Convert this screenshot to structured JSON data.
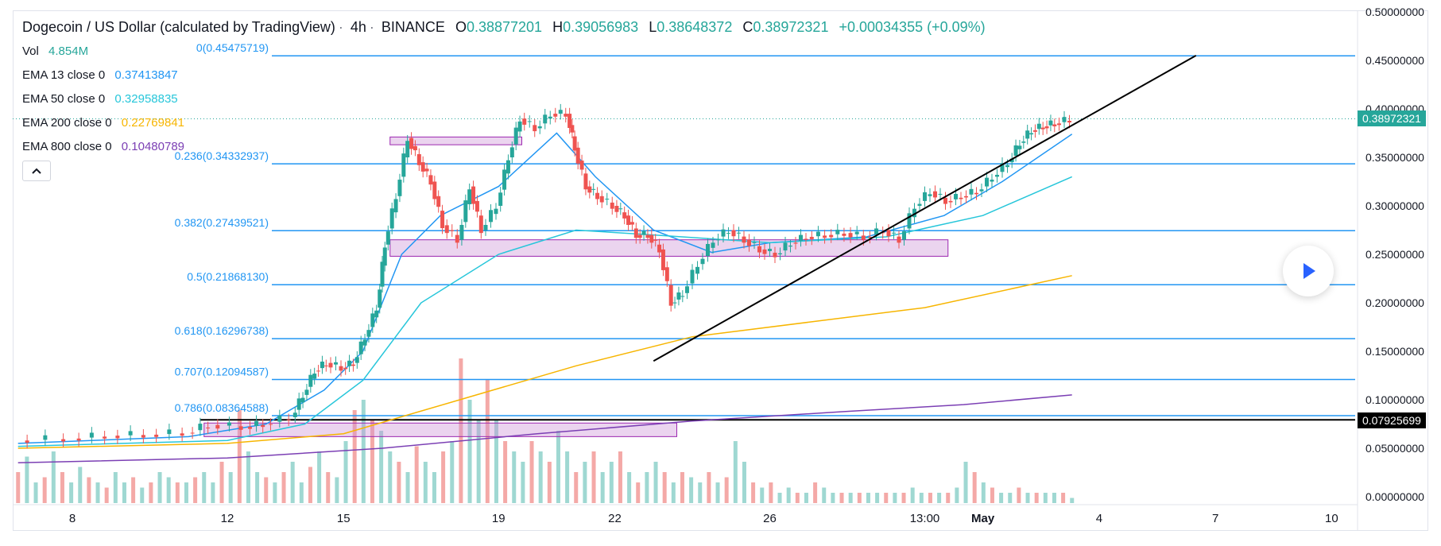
{
  "legend": {
    "symbol": "Dogecoin / US Dollar (calculated by TradingView)",
    "interval": "4h",
    "exchange": "BINANCE",
    "open_key": "O",
    "open": "0.38877201",
    "high_key": "H",
    "high": "0.39056983",
    "low_key": "L",
    "low": "0.38648372",
    "close_key": "C",
    "close": "0.38972321",
    "change": "+0.00034355 (+0.09%)",
    "vol_label": "Vol",
    "vol_value": "4.854M"
  },
  "indicators": [
    {
      "label": "EMA 13 close 0",
      "value": "0.37413847",
      "color": "#2196f3"
    },
    {
      "label": "EMA 50 close 0",
      "value": "0.32958835",
      "color": "#26c6da"
    },
    {
      "label": "EMA 200 close 0",
      "value": "0.22769841",
      "color": "#f7b500"
    },
    {
      "label": "EMA 800 close 0",
      "value": "0.10480789",
      "color": "#7b3fb4"
    }
  ],
  "price_tags": {
    "last": "0.38972321",
    "level": "0.07925699"
  },
  "colors": {
    "up": "#26a69a",
    "down": "#ef5350",
    "fib": "#2196f3",
    "zone": "#ce93d8"
  },
  "chart_data": {
    "type": "candlestick",
    "title": "Dogecoin / US Dollar (calculated by TradingView) · 4h · BINANCE",
    "ylim": [
      -0.01,
      0.51
    ],
    "y_ticks": [
      "0.50000000",
      "0.45000000",
      "0.40000000",
      "0.35000000",
      "0.30000000",
      "0.25000000",
      "0.20000000",
      "0.15000000",
      "0.10000000",
      "0.05000000",
      "0.00000000"
    ],
    "y_tick_values": [
      0.5,
      0.45,
      0.4,
      0.35,
      0.3,
      0.25,
      0.2,
      0.15,
      0.1,
      0.05,
      0.0
    ],
    "x_ticks": [
      "8",
      "12",
      "15",
      "19",
      "22",
      "26",
      "13:00",
      "May",
      "4",
      "7",
      "10"
    ],
    "x_tick_days": [
      8,
      12,
      15,
      19,
      22,
      26,
      30,
      31.5,
      34.5,
      37.5,
      40.5
    ],
    "fib_levels": [
      {
        "label": "0(0.45475719)",
        "value": 0.45475719
      },
      {
        "label": "0.236(0.34332937)",
        "value": 0.34332937
      },
      {
        "label": "0.382(0.27439521)",
        "value": 0.27439521
      },
      {
        "label": "0.5(0.21868130)",
        "value": 0.2186813
      },
      {
        "label": "0.618(0.16296738)",
        "value": 0.16296738
      },
      {
        "label": "0.707(0.12094587)",
        "value": 0.12094587
      },
      {
        "label": "0.786(0.08364588)",
        "value": 0.08364588
      }
    ],
    "horizontal_level": 0.07925699,
    "trendline": {
      "start": {
        "day": 23.0,
        "price": 0.14
      },
      "end": {
        "day": 37.0,
        "price": 0.455
      }
    },
    "zones": [
      {
        "day_start": 16.2,
        "day_end": 19.6,
        "price_low": 0.363,
        "price_high": 0.371
      },
      {
        "day_start": 16.2,
        "day_end": 30.6,
        "price_low": 0.248,
        "price_high": 0.265
      },
      {
        "day_start": 11.4,
        "day_end": 23.6,
        "price_low": 0.062,
        "price_high": 0.076
      }
    ],
    "price_series": [
      {
        "day": 6.6,
        "price": 0.058
      },
      {
        "day": 8.0,
        "price": 0.06
      },
      {
        "day": 9.0,
        "price": 0.063
      },
      {
        "day": 10.0,
        "price": 0.064
      },
      {
        "day": 11.0,
        "price": 0.066
      },
      {
        "day": 11.6,
        "price": 0.074
      },
      {
        "day": 12.5,
        "price": 0.072
      },
      {
        "day": 13.0,
        "price": 0.075
      },
      {
        "day": 13.7,
        "price": 0.082
      },
      {
        "day": 14.0,
        "price": 0.105
      },
      {
        "day": 14.3,
        "price": 0.13
      },
      {
        "day": 14.6,
        "price": 0.138
      },
      {
        "day": 15.0,
        "price": 0.133
      },
      {
        "day": 15.3,
        "price": 0.138
      },
      {
        "day": 15.6,
        "price": 0.165
      },
      {
        "day": 15.9,
        "price": 0.195
      },
      {
        "day": 16.1,
        "price": 0.26
      },
      {
        "day": 16.4,
        "price": 0.31
      },
      {
        "day": 16.7,
        "price": 0.37
      },
      {
        "day": 17.0,
        "price": 0.345
      },
      {
        "day": 17.3,
        "price": 0.325
      },
      {
        "day": 17.6,
        "price": 0.28
      },
      {
        "day": 18.0,
        "price": 0.265
      },
      {
        "day": 18.3,
        "price": 0.32
      },
      {
        "day": 18.6,
        "price": 0.275
      },
      {
        "day": 19.0,
        "price": 0.3
      },
      {
        "day": 19.3,
        "price": 0.35
      },
      {
        "day": 19.6,
        "price": 0.39
      },
      {
        "day": 20.0,
        "price": 0.38
      },
      {
        "day": 20.4,
        "price": 0.395
      },
      {
        "day": 20.8,
        "price": 0.395
      },
      {
        "day": 21.0,
        "price": 0.36
      },
      {
        "day": 21.3,
        "price": 0.32
      },
      {
        "day": 21.6,
        "price": 0.31
      },
      {
        "day": 22.0,
        "price": 0.3
      },
      {
        "day": 22.3,
        "price": 0.29
      },
      {
        "day": 22.6,
        "price": 0.27
      },
      {
        "day": 22.9,
        "price": 0.27
      },
      {
        "day": 23.2,
        "price": 0.255
      },
      {
        "day": 23.5,
        "price": 0.2
      },
      {
        "day": 23.8,
        "price": 0.21
      },
      {
        "day": 24.2,
        "price": 0.24
      },
      {
        "day": 24.6,
        "price": 0.265
      },
      {
        "day": 25.0,
        "price": 0.275
      },
      {
        "day": 25.4,
        "price": 0.265
      },
      {
        "day": 25.8,
        "price": 0.255
      },
      {
        "day": 26.2,
        "price": 0.25
      },
      {
        "day": 26.6,
        "price": 0.262
      },
      {
        "day": 27.0,
        "price": 0.268
      },
      {
        "day": 27.5,
        "price": 0.27
      },
      {
        "day": 28.0,
        "price": 0.272
      },
      {
        "day": 28.5,
        "price": 0.268
      },
      {
        "day": 29.0,
        "price": 0.275
      },
      {
        "day": 29.4,
        "price": 0.265
      },
      {
        "day": 29.8,
        "price": 0.3
      },
      {
        "day": 30.2,
        "price": 0.315
      },
      {
        "day": 30.6,
        "price": 0.305
      },
      {
        "day": 31.0,
        "price": 0.31
      },
      {
        "day": 31.4,
        "price": 0.315
      },
      {
        "day": 31.8,
        "price": 0.33
      },
      {
        "day": 32.2,
        "price": 0.345
      },
      {
        "day": 32.5,
        "price": 0.365
      },
      {
        "day": 32.8,
        "price": 0.378
      },
      {
        "day": 33.1,
        "price": 0.382
      },
      {
        "day": 33.4,
        "price": 0.385
      },
      {
        "day": 33.8,
        "price": 0.389
      }
    ],
    "ema_series": [
      {
        "name": "EMA 13",
        "points": [
          {
            "day": 6.6,
            "price": 0.055
          },
          {
            "day": 11.0,
            "price": 0.062
          },
          {
            "day": 13.0,
            "price": 0.075
          },
          {
            "day": 14.5,
            "price": 0.11
          },
          {
            "day": 15.5,
            "price": 0.15
          },
          {
            "day": 16.5,
            "price": 0.25
          },
          {
            "day": 17.5,
            "price": 0.29
          },
          {
            "day": 19.0,
            "price": 0.32
          },
          {
            "day": 20.5,
            "price": 0.375
          },
          {
            "day": 21.5,
            "price": 0.33
          },
          {
            "day": 23.0,
            "price": 0.275
          },
          {
            "day": 24.5,
            "price": 0.252
          },
          {
            "day": 26.0,
            "price": 0.262
          },
          {
            "day": 28.5,
            "price": 0.268
          },
          {
            "day": 30.5,
            "price": 0.29
          },
          {
            "day": 32.0,
            "price": 0.325
          },
          {
            "day": 33.8,
            "price": 0.374
          }
        ]
      },
      {
        "name": "EMA 50",
        "points": [
          {
            "day": 6.6,
            "price": 0.052
          },
          {
            "day": 12.0,
            "price": 0.058
          },
          {
            "day": 14.0,
            "price": 0.075
          },
          {
            "day": 15.5,
            "price": 0.12
          },
          {
            "day": 17.0,
            "price": 0.2
          },
          {
            "day": 19.0,
            "price": 0.25
          },
          {
            "day": 21.0,
            "price": 0.275
          },
          {
            "day": 23.0,
            "price": 0.27
          },
          {
            "day": 26.0,
            "price": 0.262
          },
          {
            "day": 29.0,
            "price": 0.268
          },
          {
            "day": 31.5,
            "price": 0.29
          },
          {
            "day": 33.8,
            "price": 0.33
          }
        ]
      },
      {
        "name": "EMA 200",
        "points": [
          {
            "day": 6.6,
            "price": 0.05
          },
          {
            "day": 12.0,
            "price": 0.055
          },
          {
            "day": 15.0,
            "price": 0.065
          },
          {
            "day": 18.0,
            "price": 0.1
          },
          {
            "day": 21.0,
            "price": 0.135
          },
          {
            "day": 24.0,
            "price": 0.165
          },
          {
            "day": 27.0,
            "price": 0.18
          },
          {
            "day": 30.0,
            "price": 0.195
          },
          {
            "day": 33.8,
            "price": 0.228
          }
        ]
      },
      {
        "name": "EMA 800",
        "points": [
          {
            "day": 6.6,
            "price": 0.035
          },
          {
            "day": 12.0,
            "price": 0.04
          },
          {
            "day": 16.0,
            "price": 0.05
          },
          {
            "day": 20.0,
            "price": 0.065
          },
          {
            "day": 24.0,
            "price": 0.078
          },
          {
            "day": 28.0,
            "price": 0.088
          },
          {
            "day": 31.0,
            "price": 0.095
          },
          {
            "day": 33.8,
            "price": 0.105
          }
        ]
      }
    ],
    "volume_series": {
      "unit": "relative (0-1)",
      "days_start": 6.6,
      "days_end": 33.8,
      "values": [
        0.3,
        0.45,
        0.2,
        0.25,
        0.5,
        0.3,
        0.2,
        0.35,
        0.25,
        0.2,
        0.15,
        0.3,
        0.2,
        0.25,
        0.15,
        0.2,
        0.3,
        0.25,
        0.2,
        0.2,
        0.25,
        0.3,
        0.2,
        0.4,
        0.3,
        0.9,
        0.5,
        0.3,
        0.25,
        0.2,
        0.3,
        0.4,
        0.2,
        0.35,
        0.5,
        0.3,
        0.25,
        0.6,
        0.9,
        1.0,
        0.8,
        0.7,
        0.5,
        0.4,
        0.3,
        0.55,
        0.4,
        0.3,
        0.5,
        0.6,
        1.4,
        1.0,
        0.8,
        1.2,
        0.8,
        0.6,
        0.5,
        0.4,
        0.6,
        0.5,
        0.4,
        0.7,
        0.5,
        0.3,
        0.4,
        0.5,
        0.3,
        0.4,
        0.5,
        0.3,
        0.2,
        0.3,
        0.4,
        0.3,
        0.2,
        0.3,
        0.25,
        0.2,
        0.3,
        0.2,
        0.25,
        0.6,
        0.4,
        0.2,
        0.15,
        0.2,
        0.1,
        0.15,
        0.1,
        0.1,
        0.2,
        0.15,
        0.1,
        0.1,
        0.1,
        0.1,
        0.1,
        0.1,
        0.1,
        0.1,
        0.1,
        0.15,
        0.1,
        0.1,
        0.1,
        0.1,
        0.15,
        0.4,
        0.3,
        0.2,
        0.15,
        0.1,
        0.1,
        0.15,
        0.1,
        0.1,
        0.1,
        0.1,
        0.1,
        0.05
      ]
    }
  }
}
